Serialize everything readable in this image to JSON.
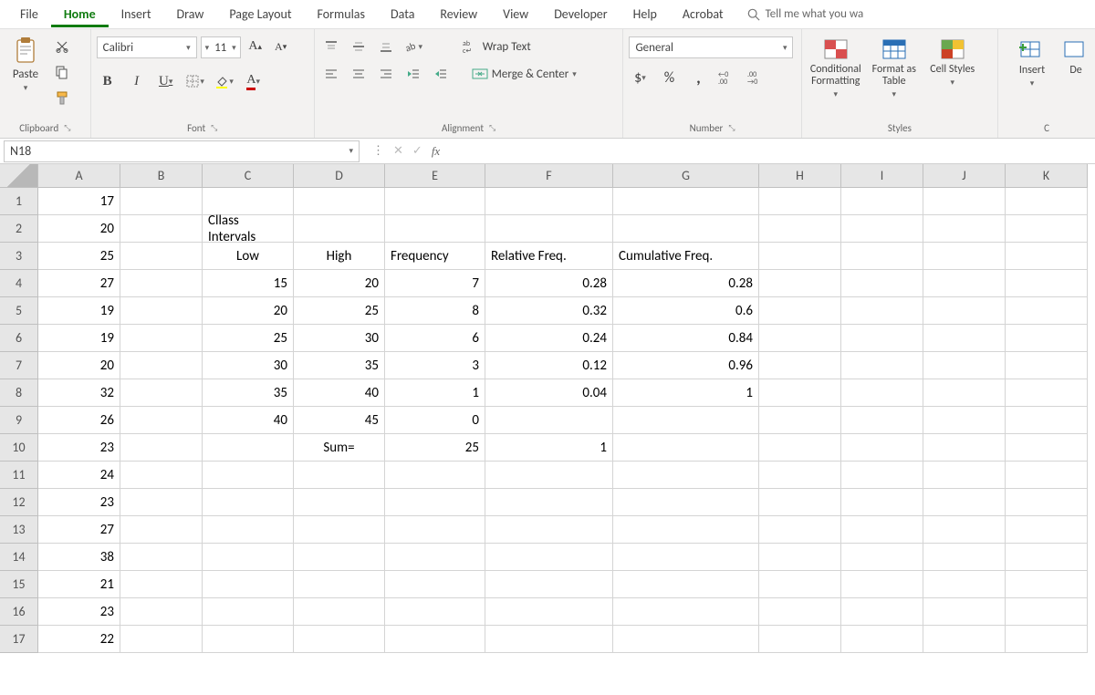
{
  "tabs": [
    "File",
    "Home",
    "Insert",
    "Draw",
    "Page Layout",
    "Formulas",
    "Data",
    "Review",
    "View",
    "Developer",
    "Help",
    "Acrobat"
  ],
  "activeTab": "Home",
  "tellMe": "Tell me what you wa",
  "clipboard": {
    "label": "Clipboard",
    "paste": "Paste"
  },
  "font": {
    "label": "Font",
    "name": "Calibri",
    "size": "11",
    "bold": "B",
    "italic": "I",
    "underline": "U"
  },
  "alignment": {
    "label": "Alignment",
    "wrap": "Wrap Text",
    "merge": "Merge & Center"
  },
  "number": {
    "label": "Number",
    "format": "General",
    "dollar": "$",
    "percent": "%",
    "comma": ","
  },
  "styles": {
    "label": "Styles",
    "cond": "Conditional Formatting",
    "fmtTable": "Format as Table",
    "cellStyles": "Cell Styles"
  },
  "cells": {
    "insert": "Insert",
    "delete": "De"
  },
  "namebox": "N18",
  "formula": "",
  "columns": [
    "A",
    "B",
    "C",
    "D",
    "E",
    "F",
    "G",
    "H",
    "I",
    "J",
    "K"
  ],
  "grid": {
    "rows": [
      {
        "n": "1",
        "A": "17"
      },
      {
        "n": "2",
        "A": "20",
        "C": "Cllass Intervals"
      },
      {
        "n": "3",
        "A": "25",
        "C": "Low",
        "D": "High",
        "E": "Frequency",
        "F": "Relative Freq.",
        "G": "Cumulative Freq."
      },
      {
        "n": "4",
        "A": "27",
        "C": "15",
        "D": "20",
        "E": "7",
        "F": "0.28",
        "G": "0.28"
      },
      {
        "n": "5",
        "A": "19",
        "C": "20",
        "D": "25",
        "E": "8",
        "F": "0.32",
        "G": "0.6"
      },
      {
        "n": "6",
        "A": "19",
        "C": "25",
        "D": "30",
        "E": "6",
        "F": "0.24",
        "G": "0.84"
      },
      {
        "n": "7",
        "A": "20",
        "C": "30",
        "D": "35",
        "E": "3",
        "F": "0.12",
        "G": "0.96"
      },
      {
        "n": "8",
        "A": "32",
        "C": "35",
        "D": "40",
        "E": "1",
        "F": "0.04",
        "G": "1"
      },
      {
        "n": "9",
        "A": "26",
        "C": "40",
        "D": "45",
        "E": "0"
      },
      {
        "n": "10",
        "A": "23",
        "D": "Sum=",
        "E": "25",
        "F": "1"
      },
      {
        "n": "11",
        "A": "24"
      },
      {
        "n": "12",
        "A": "23"
      },
      {
        "n": "13",
        "A": "27"
      },
      {
        "n": "14",
        "A": "38"
      },
      {
        "n": "15",
        "A": "21"
      },
      {
        "n": "16",
        "A": "23"
      },
      {
        "n": "17",
        "A": "22"
      }
    ]
  },
  "colors": {
    "accent": "#0f7b0f",
    "ribbon": "#f3f2f1",
    "grid_border": "#d4d4d4",
    "header_bg": "#e6e6e6"
  }
}
